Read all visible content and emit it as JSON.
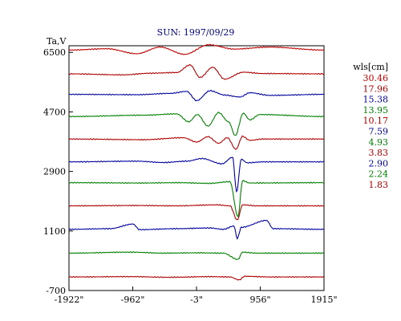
{
  "chart_data": {
    "type": "line",
    "title": "SUN: 1997/09/29",
    "ylabel": "Ta,V",
    "xlabel": "",
    "xlim": [
      -1922,
      1915
    ],
    "ylim": [
      -700,
      6700
    ],
    "x_ticks": [
      -1922,
      -962,
      -3,
      956,
      1915
    ],
    "x_tick_labels": [
      "-1922\"",
      "-962\"",
      "-3\"",
      "956\"",
      "1915\""
    ],
    "y_ticks": [
      6500,
      4700,
      2900,
      1100,
      -700
    ],
    "y_tick_labels": [
      "6500",
      "4700",
      "2900",
      "1100",
      "-700"
    ],
    "grid": false,
    "legend": {
      "title": "wls[cm]",
      "placement": "right"
    },
    "series": [
      {
        "name": "30.46",
        "color": "#c00000",
        "baseline": 6570,
        "features": [
          [
            -1900,
            0
          ],
          [
            -1350,
            40
          ],
          [
            -900,
            -110
          ],
          [
            -550,
            90
          ],
          [
            -180,
            -130
          ],
          [
            180,
            160
          ],
          [
            560,
            30
          ],
          [
            1100,
            90
          ],
          [
            1900,
            0
          ]
        ]
      },
      {
        "name": "17.96",
        "color": "#b00000",
        "baseline": 5850,
        "features": [
          [
            -1900,
            0
          ],
          [
            -1100,
            -30
          ],
          [
            -700,
            20
          ],
          [
            -300,
            40
          ],
          [
            -100,
            270
          ],
          [
            50,
            -110
          ],
          [
            240,
            200
          ],
          [
            420,
            -160
          ],
          [
            700,
            50
          ],
          [
            1000,
            10
          ],
          [
            1900,
            0
          ]
        ]
      },
      {
        "name": "15.38",
        "color": "#0000a0",
        "baseline": 5230,
        "features": [
          [
            -1900,
            0
          ],
          [
            -900,
            -10
          ],
          [
            -400,
            30
          ],
          [
            -150,
            90
          ],
          [
            0,
            -190
          ],
          [
            200,
            110
          ],
          [
            420,
            -20
          ],
          [
            650,
            -80
          ],
          [
            800,
            50
          ],
          [
            1100,
            -30
          ],
          [
            1900,
            0
          ]
        ]
      },
      {
        "name": "13.95",
        "color": "#008000",
        "baseline": 4560,
        "features": [
          [
            -1900,
            0
          ],
          [
            -800,
            40
          ],
          [
            -300,
            80
          ],
          [
            -120,
            -160
          ],
          [
            10,
            60
          ],
          [
            170,
            -290
          ],
          [
            330,
            120
          ],
          [
            480,
            -160
          ],
          [
            580,
            -580
          ],
          [
            700,
            100
          ],
          [
            800,
            -100
          ],
          [
            950,
            60
          ],
          [
            1900,
            0
          ]
        ]
      },
      {
        "name": "10.17",
        "color": "#b00000",
        "baseline": 3880,
        "features": [
          [
            -1900,
            0
          ],
          [
            -800,
            -20
          ],
          [
            -200,
            40
          ],
          [
            0,
            -90
          ],
          [
            170,
            70
          ],
          [
            330,
            -130
          ],
          [
            460,
            40
          ],
          [
            590,
            -310
          ],
          [
            690,
            80
          ],
          [
            800,
            -40
          ],
          [
            1000,
            0
          ],
          [
            1900,
            0
          ]
        ]
      },
      {
        "name": "7.59",
        "color": "#0000a0",
        "baseline": 3190,
        "features": [
          [
            -1900,
            0
          ],
          [
            -900,
            20
          ],
          [
            -500,
            -20
          ],
          [
            -150,
            20
          ],
          [
            80,
            100
          ],
          [
            380,
            -60
          ],
          [
            540,
            140
          ],
          [
            600,
            -910
          ],
          [
            670,
            80
          ],
          [
            760,
            -30
          ],
          [
            1000,
            0
          ],
          [
            1900,
            0
          ]
        ]
      },
      {
        "name": "4.93",
        "color": "#008000",
        "baseline": 2560,
        "features": [
          [
            -1900,
            0
          ],
          [
            -800,
            -10
          ],
          [
            -300,
            0
          ],
          [
            200,
            -20
          ],
          [
            500,
            30
          ],
          [
            620,
            -1030
          ],
          [
            690,
            60
          ],
          [
            800,
            -10
          ],
          [
            1900,
            0
          ]
        ]
      },
      {
        "name": "3.83",
        "color": "#b00000",
        "baseline": 1860,
        "features": [
          [
            -1900,
            0
          ],
          [
            -900,
            10
          ],
          [
            -300,
            0
          ],
          [
            300,
            30
          ],
          [
            500,
            0
          ],
          [
            610,
            -430
          ],
          [
            690,
            30
          ],
          [
            900,
            0
          ],
          [
            1900,
            0
          ]
        ]
      },
      {
        "name": "2.90",
        "color": "#0000a0",
        "baseline": 1150,
        "features": [
          [
            -1900,
            0
          ],
          [
            -1300,
            20
          ],
          [
            -960,
            160
          ],
          [
            -860,
            -10
          ],
          [
            -300,
            20
          ],
          [
            200,
            40
          ],
          [
            400,
            0
          ],
          [
            560,
            100
          ],
          [
            610,
            -280
          ],
          [
            670,
            60
          ],
          [
            1050,
            270
          ],
          [
            1150,
            20
          ],
          [
            1900,
            0
          ]
        ]
      },
      {
        "name": "2.24",
        "color": "#008000",
        "baseline": 430,
        "features": [
          [
            -1900,
            0
          ],
          [
            -1000,
            30
          ],
          [
            -500,
            0
          ],
          [
            0,
            10
          ],
          [
            400,
            0
          ],
          [
            620,
            -190
          ],
          [
            690,
            30
          ],
          [
            900,
            0
          ],
          [
            1900,
            0
          ]
        ]
      },
      {
        "name": "1.83",
        "color": "#b00000",
        "baseline": -290,
        "features": [
          [
            -1900,
            0
          ],
          [
            -1000,
            10
          ],
          [
            -400,
            -10
          ],
          [
            200,
            10
          ],
          [
            500,
            0
          ],
          [
            640,
            -90
          ],
          [
            720,
            20
          ],
          [
            1100,
            0
          ],
          [
            1900,
            0
          ]
        ]
      }
    ]
  }
}
